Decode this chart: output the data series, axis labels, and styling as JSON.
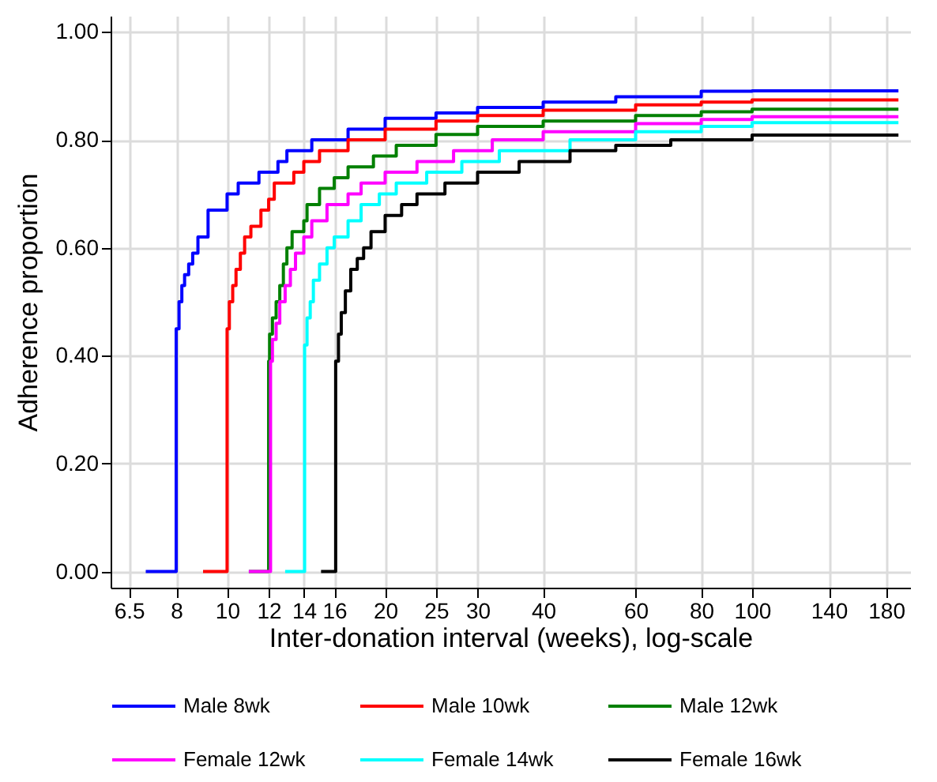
{
  "chart_data": {
    "type": "step",
    "xlabel": "Inter-donation interval (weeks), log-scale",
    "ylabel": "Adherence proportion",
    "log": "x",
    "grid": true,
    "legend": "bottom",
    "marker": "none",
    "line_style": "solid",
    "xlim": [
      6,
      200
    ],
    "xticks": [
      6.5,
      8,
      10,
      12,
      14,
      16,
      20,
      25,
      30,
      40,
      60,
      80,
      100,
      140,
      180
    ],
    "ylim": [
      -0.03,
      1.03
    ],
    "yticks": [
      {
        "value": 0,
        "label": "0.00"
      },
      {
        "value": 0.2,
        "label": "0.20"
      },
      {
        "value": 0.4,
        "label": "0.40"
      },
      {
        "value": 0.6,
        "label": "0.60"
      },
      {
        "value": 0.8,
        "label": "0.80"
      },
      {
        "value": 1,
        "label": "1.00"
      }
    ],
    "series": [
      {
        "name": "Male 8wk",
        "color": "#0000ff",
        "x": [
          7.0,
          8,
          8.1,
          8.2,
          8.3,
          8.45,
          8.6,
          8.8,
          9.2,
          10,
          10.5,
          11.5,
          12.5,
          13,
          14.5,
          17,
          20,
          25,
          30,
          40,
          55,
          80,
          100,
          190
        ],
        "values": [
          0,
          0.45,
          0.5,
          0.53,
          0.55,
          0.57,
          0.59,
          0.62,
          0.67,
          0.7,
          0.72,
          0.74,
          0.76,
          0.78,
          0.8,
          0.82,
          0.84,
          0.85,
          0.86,
          0.87,
          0.88,
          0.89,
          0.891,
          0.891
        ]
      },
      {
        "name": "Male 10wk",
        "color": "#ff0000",
        "x": [
          9.0,
          10,
          10.1,
          10.25,
          10.4,
          10.6,
          10.8,
          11.1,
          11.6,
          12,
          12.3,
          13.4,
          14,
          15,
          17,
          20,
          25,
          30,
          40,
          60,
          80,
          100,
          190
        ],
        "values": [
          0,
          0.45,
          0.5,
          0.53,
          0.56,
          0.59,
          0.62,
          0.64,
          0.67,
          0.69,
          0.72,
          0.74,
          0.76,
          0.78,
          0.8,
          0.82,
          0.835,
          0.845,
          0.855,
          0.865,
          0.87,
          0.874,
          0.874
        ]
      },
      {
        "name": "Male 12wk",
        "color": "#008000",
        "x": [
          11.0,
          12,
          12.05,
          12.2,
          12.4,
          12.6,
          12.8,
          13,
          13.3,
          14,
          14.2,
          15,
          16,
          17,
          19,
          21,
          25,
          30,
          40,
          60,
          80,
          100,
          190
        ],
        "values": [
          0,
          0.39,
          0.44,
          0.47,
          0.5,
          0.53,
          0.57,
          0.6,
          0.63,
          0.65,
          0.68,
          0.71,
          0.73,
          0.75,
          0.77,
          0.79,
          0.81,
          0.825,
          0.835,
          0.845,
          0.852,
          0.857,
          0.857
        ]
      },
      {
        "name": "Female 12wk",
        "color": "#ff00ff",
        "x": [
          11.0,
          12.1,
          12.2,
          12.4,
          12.6,
          12.9,
          13.2,
          13.5,
          14,
          14.5,
          15.5,
          17,
          18,
          20,
          23,
          27,
          32,
          40,
          60,
          80,
          100,
          190
        ],
        "values": [
          0,
          0.39,
          0.43,
          0.46,
          0.5,
          0.53,
          0.56,
          0.59,
          0.62,
          0.65,
          0.68,
          0.7,
          0.72,
          0.74,
          0.76,
          0.78,
          0.8,
          0.815,
          0.83,
          0.838,
          0.843,
          0.843
        ]
      },
      {
        "name": "Female 14wk",
        "color": "#00ffff",
        "x": [
          12.9,
          14.05,
          14.2,
          14.4,
          14.6,
          15,
          15.5,
          16,
          17,
          18,
          19.5,
          21,
          24,
          28,
          33,
          45,
          60,
          80,
          100,
          190
        ],
        "values": [
          0,
          0.42,
          0.47,
          0.5,
          0.54,
          0.57,
          0.6,
          0.62,
          0.65,
          0.68,
          0.7,
          0.72,
          0.74,
          0.76,
          0.78,
          0.8,
          0.815,
          0.825,
          0.832,
          0.832
        ]
      },
      {
        "name": "Female 16wk",
        "color": "#000000",
        "x": [
          15.1,
          16.1,
          16.3,
          16.5,
          16.8,
          17.2,
          17.7,
          18.2,
          18.8,
          20,
          21.5,
          23,
          26,
          30,
          36,
          45,
          55,
          70,
          100,
          190
        ],
        "values": [
          0,
          0.39,
          0.44,
          0.48,
          0.52,
          0.56,
          0.58,
          0.6,
          0.63,
          0.66,
          0.68,
          0.7,
          0.72,
          0.74,
          0.76,
          0.78,
          0.79,
          0.8,
          0.809,
          0.809
        ]
      }
    ]
  }
}
